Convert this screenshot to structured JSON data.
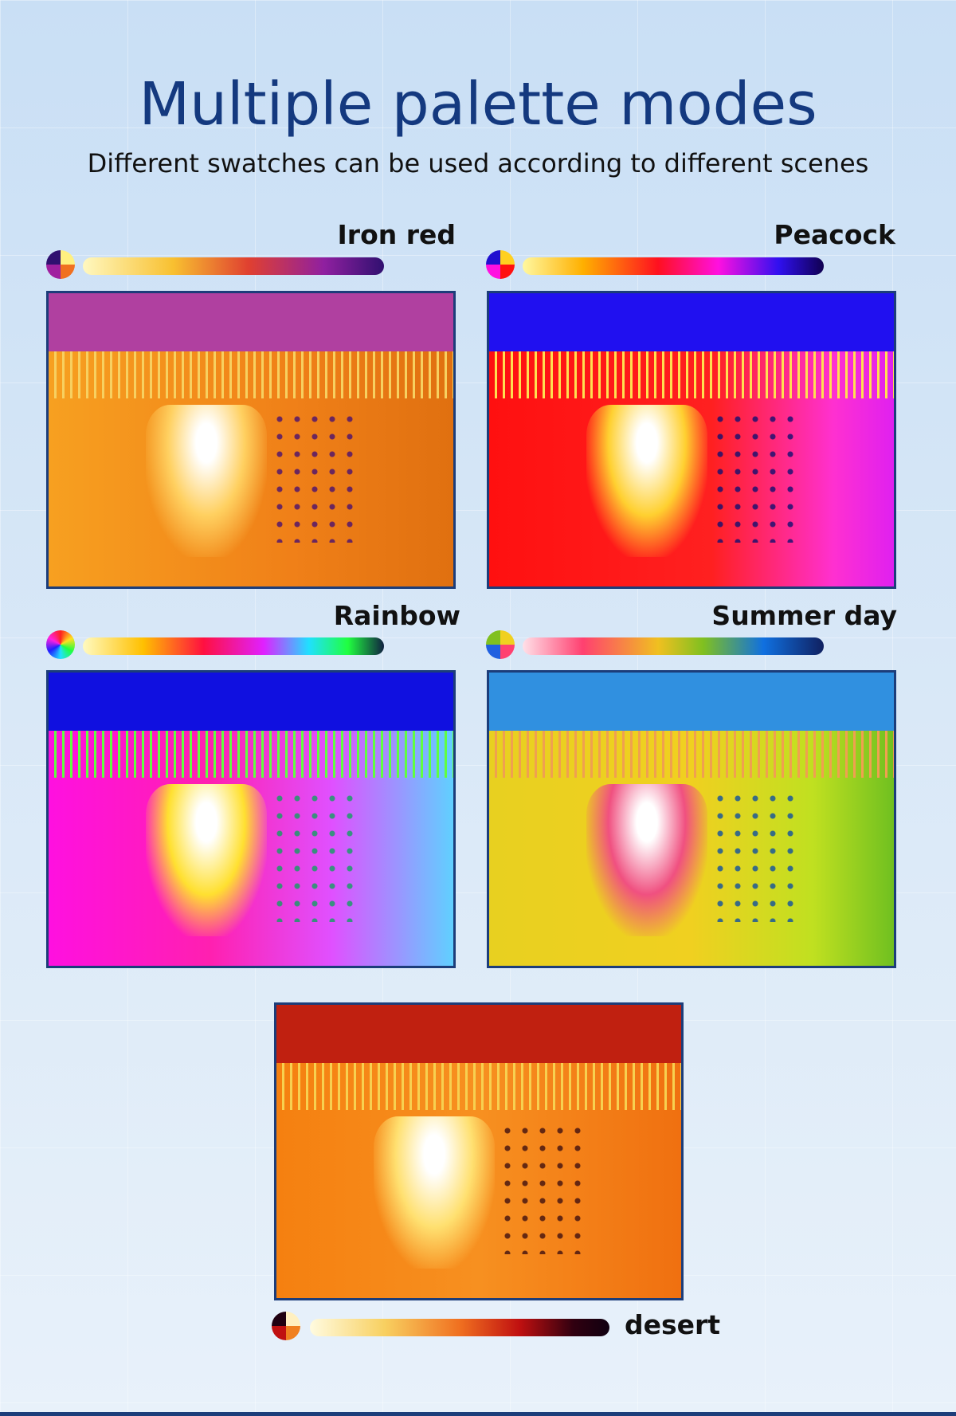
{
  "header": {
    "title": "Multiple palette modes",
    "subtitle": "Different swatches can be used according to different scenes"
  },
  "palettes": [
    {
      "name": "Iron red"
    },
    {
      "name": "Peacock"
    },
    {
      "name": "Rainbow"
    },
    {
      "name": "Summer day"
    },
    {
      "name": "desert"
    }
  ]
}
